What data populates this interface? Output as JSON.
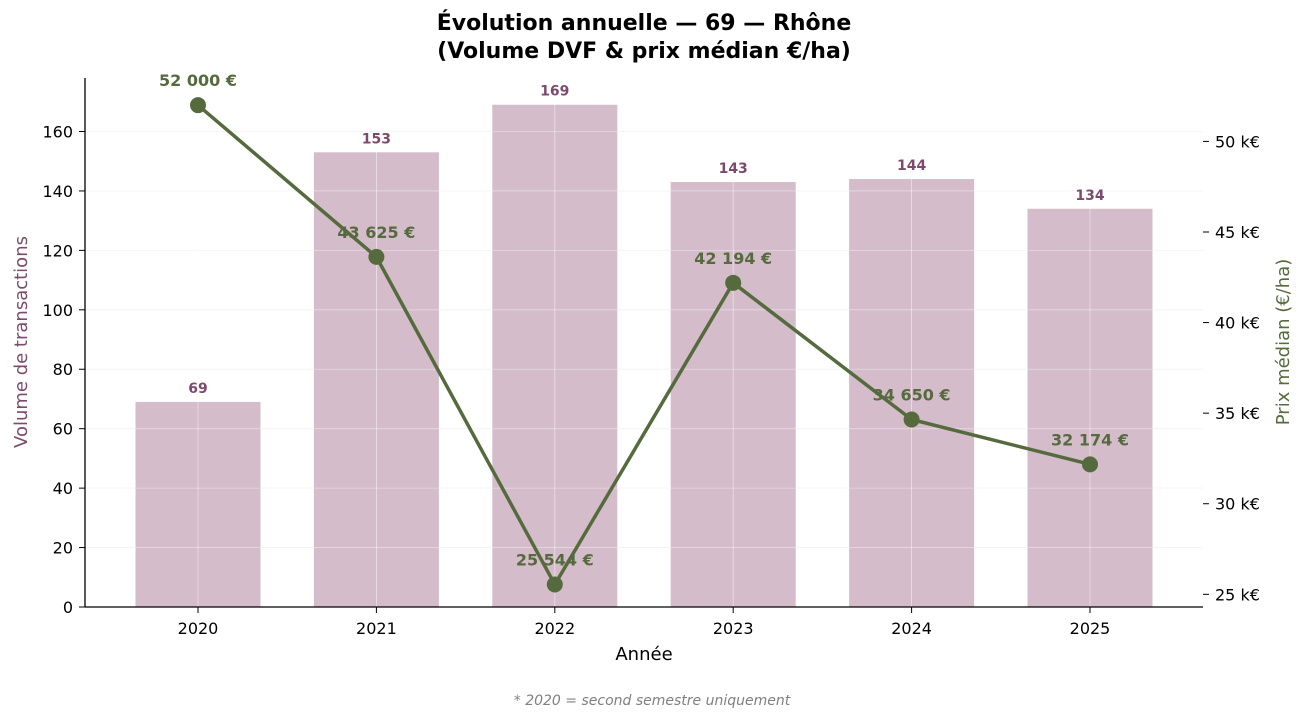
{
  "chart_data": {
    "type": "bar",
    "title_line1": "Évolution annuelle — 69 — Rhône",
    "title_line2": "(Volume DVF & prix médian €/ha)",
    "xlabel": "Année",
    "ylabel_left": "Volume de transactions",
    "ylabel_right": "Prix médian (€/ha)",
    "footnote": "* 2020 = second semestre uniquement",
    "categories": [
      "2020",
      "2021",
      "2022",
      "2023",
      "2024",
      "2025"
    ],
    "series": [
      {
        "axis": "left",
        "kind": "bar",
        "values": [
          69,
          153,
          169,
          143,
          144,
          134
        ],
        "value_labels": [
          "69",
          "153",
          "169",
          "143",
          "144",
          "134"
        ],
        "color": "#d4bccb",
        "label_color": "#7d4a6e"
      },
      {
        "axis": "right",
        "kind": "line",
        "values": [
          52000,
          43625,
          25544,
          42194,
          34650,
          32174
        ],
        "value_labels": [
          "52 000 €",
          "43 625 €",
          "25 544 €",
          "42 194 €",
          "34 650 €",
          "32 174 €"
        ],
        "color": "#556b3d"
      }
    ],
    "left_axis": {
      "ylim": [
        0,
        178
      ],
      "ticks": [
        0,
        20,
        40,
        60,
        80,
        100,
        120,
        140,
        160
      ],
      "tick_labels": [
        "0",
        "20",
        "40",
        "60",
        "80",
        "100",
        "120",
        "140",
        "160"
      ],
      "label_color": "#7d4a6e"
    },
    "right_axis": {
      "ylim": [
        24300,
        53500
      ],
      "ticks": [
        25000,
        30000,
        35000,
        40000,
        45000,
        50000
      ],
      "tick_labels": [
        "25 k€",
        "30 k€",
        "35 k€",
        "40 k€",
        "45 k€",
        "50 k€"
      ],
      "label_color": "#556b3d"
    },
    "grid": true
  }
}
